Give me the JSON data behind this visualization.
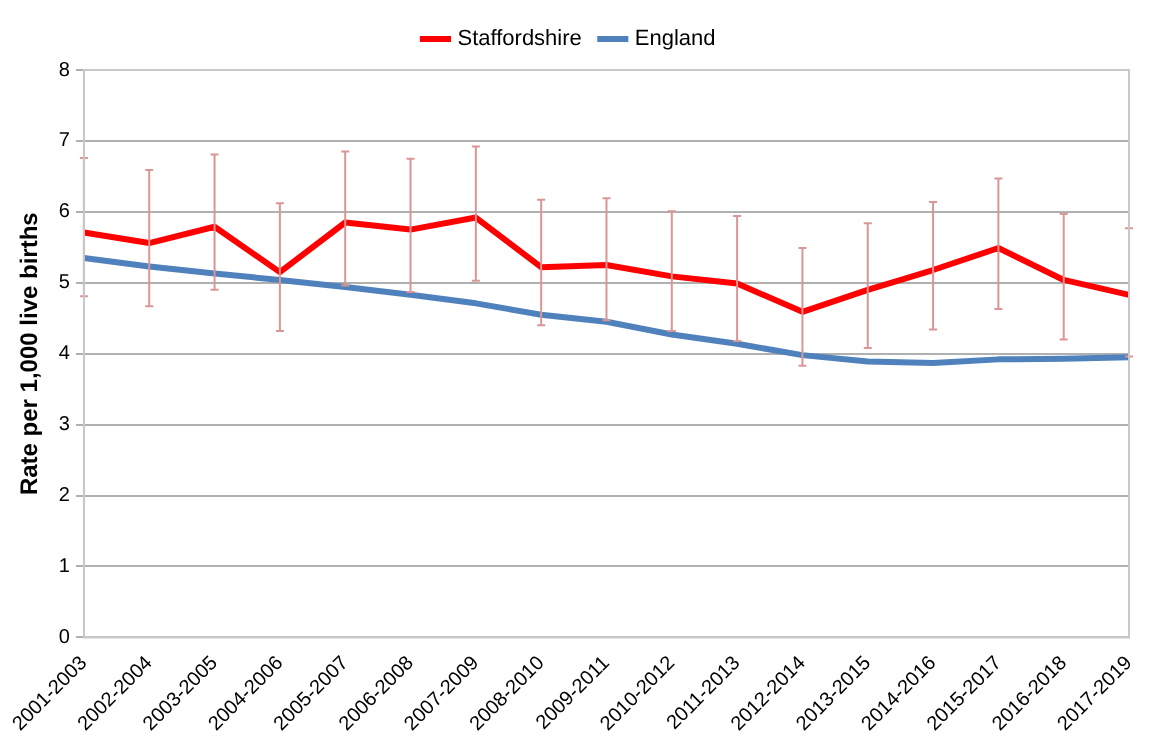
{
  "chart_data": {
    "type": "line",
    "ylabel": "Rate per 1,000 live births",
    "categories": [
      "2001-2003",
      "2002-2004",
      "2003-2005",
      "2004-2006",
      "2005-2007",
      "2006-2008",
      "2007-2009",
      "2008-2010",
      "2009-2011",
      "2010-2012",
      "2011-2013",
      "2012-2014",
      "2013-2015",
      "2014-2016",
      "2015-2017",
      "2016-2018",
      "2017-2019"
    ],
    "series": [
      {
        "name": "Staffordshire",
        "color": "#ff0000",
        "values": [
          5.71,
          5.56,
          5.79,
          5.15,
          5.85,
          5.75,
          5.92,
          5.22,
          5.25,
          5.09,
          4.99,
          4.59,
          4.9,
          5.18,
          5.49,
          5.04,
          4.83
        ],
        "errors": [
          [
            4.81,
            6.76
          ],
          [
            4.67,
            6.59
          ],
          [
            4.9,
            6.81
          ],
          [
            4.32,
            6.12
          ],
          [
            4.96,
            6.85
          ],
          [
            4.87,
            6.75
          ],
          [
            5.03,
            6.92
          ],
          [
            4.4,
            6.17
          ],
          [
            4.47,
            6.19
          ],
          [
            4.32,
            6.01
          ],
          [
            4.18,
            5.94
          ],
          [
            3.83,
            5.49
          ],
          [
            4.08,
            5.84
          ],
          [
            4.34,
            6.14
          ],
          [
            4.63,
            6.47
          ],
          [
            4.2,
            5.97
          ],
          [
            3.96,
            5.77
          ]
        ]
      },
      {
        "name": "England",
        "color": "#4f81bd",
        "values": [
          5.35,
          5.23,
          5.13,
          5.04,
          4.94,
          4.83,
          4.71,
          4.55,
          4.45,
          4.27,
          4.14,
          3.98,
          3.89,
          3.87,
          3.92,
          3.93,
          3.95
        ]
      }
    ],
    "ylim": [
      0,
      8
    ],
    "yticks": [
      0,
      1,
      2,
      3,
      4,
      5,
      6,
      7,
      8
    ],
    "grid": "y",
    "legend": "top",
    "marker": "none",
    "line_style": "solid"
  }
}
